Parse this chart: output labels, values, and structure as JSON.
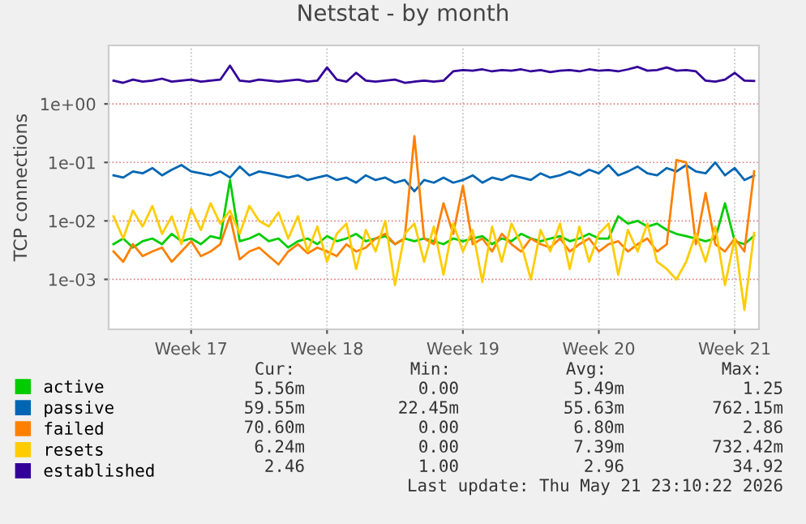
{
  "chart_data": {
    "type": "line",
    "title": "Netstat - by month",
    "ylabel": "TCP connections",
    "log": true,
    "grid": true,
    "legend": "bottom",
    "ylim": [
      0.00014,
      10
    ],
    "yticks": [
      {
        "value": 0.001,
        "label": "1e-03"
      },
      {
        "value": 0.01,
        "label": "1e-02"
      },
      {
        "value": 0.1,
        "label": "1e-01"
      },
      {
        "value": 1,
        "label": "1e+00"
      }
    ],
    "categories": [
      null,
      null,
      null,
      null,
      null,
      null,
      null,
      null,
      "Week 17",
      null,
      null,
      null,
      null,
      null,
      null,
      null,
      null,
      null,
      null,
      null,
      null,
      null,
      "Week 18",
      null,
      null,
      null,
      null,
      null,
      null,
      null,
      null,
      null,
      null,
      null,
      null,
      null,
      "Week 19",
      null,
      null,
      null,
      null,
      null,
      null,
      null,
      null,
      null,
      null,
      null,
      null,
      null,
      "Week 20",
      null,
      null,
      null,
      null,
      null,
      null,
      null,
      null,
      null,
      null,
      null,
      null,
      null,
      "Week 21",
      null,
      null
    ],
    "series": [
      {
        "name": "active",
        "color": "#00cc00",
        "values": [
          0.004,
          0.005,
          0.0035,
          0.0045,
          0.005,
          0.004,
          0.006,
          0.0045,
          0.005,
          0.004,
          0.0055,
          0.005,
          0.05,
          0.0045,
          0.005,
          0.006,
          0.0045,
          0.005,
          0.0035,
          0.0045,
          0.005,
          0.004,
          0.0055,
          0.0045,
          0.005,
          0.006,
          0.0045,
          0.005,
          0.0055,
          0.004,
          0.005,
          0.0045,
          0.005,
          0.0045,
          0.004,
          0.005,
          0.0045,
          0.005,
          0.0055,
          0.004,
          0.005,
          0.0045,
          0.006,
          0.005,
          0.0045,
          0.005,
          0.0055,
          0.0045,
          0.005,
          0.006,
          0.005,
          0.005,
          0.012,
          0.009,
          0.01,
          0.008,
          0.009,
          0.007,
          0.006,
          0.0055,
          0.005,
          0.0045,
          0.005,
          0.02,
          0.0045,
          0.004,
          0.00556
        ]
      },
      {
        "name": "passive",
        "color": "#0066b3",
        "values": [
          0.06,
          0.055,
          0.07,
          0.065,
          0.08,
          0.06,
          0.075,
          0.09,
          0.07,
          0.065,
          0.06,
          0.07,
          0.055,
          0.085,
          0.06,
          0.07,
          0.065,
          0.06,
          0.055,
          0.06,
          0.05,
          0.055,
          0.06,
          0.05,
          0.055,
          0.045,
          0.06,
          0.05,
          0.055,
          0.045,
          0.05,
          0.032,
          0.05,
          0.045,
          0.055,
          0.045,
          0.05,
          0.06,
          0.045,
          0.055,
          0.05,
          0.06,
          0.055,
          0.05,
          0.065,
          0.055,
          0.06,
          0.07,
          0.06,
          0.075,
          0.065,
          0.09,
          0.06,
          0.07,
          0.085,
          0.065,
          0.06,
          0.08,
          0.07,
          0.09,
          0.07,
          0.065,
          0.1,
          0.06,
          0.08,
          0.05,
          0.0596
        ]
      },
      {
        "name": "failed",
        "color": "#ff8000",
        "values": [
          0.003,
          0.002,
          0.004,
          0.0025,
          0.003,
          0.0035,
          0.002,
          0.003,
          0.0045,
          0.0025,
          0.003,
          0.004,
          0.012,
          0.0022,
          0.003,
          0.0035,
          0.0025,
          0.0018,
          0.003,
          0.004,
          0.0028,
          0.0035,
          0.003,
          0.0025,
          0.004,
          0.003,
          0.0035,
          0.005,
          0.006,
          0.004,
          0.005,
          0.28,
          0.005,
          0.004,
          0.02,
          0.006,
          0.04,
          0.004,
          0.005,
          0.003,
          0.006,
          0.004,
          0.003,
          0.005,
          0.004,
          0.0035,
          0.005,
          0.003,
          0.004,
          0.005,
          0.003,
          0.004,
          0.0045,
          0.003,
          0.004,
          0.005,
          0.003,
          0.004,
          0.11,
          0.1,
          0.004,
          0.03,
          0.004,
          0.003,
          0.005,
          0.003,
          0.0706
        ]
      },
      {
        "name": "resets",
        "color": "#ffcc00",
        "values": [
          0.012,
          0.005,
          0.015,
          0.008,
          0.018,
          0.006,
          0.012,
          0.004,
          0.016,
          0.007,
          0.02,
          0.009,
          0.015,
          0.006,
          0.018,
          0.01,
          0.008,
          0.014,
          0.005,
          0.012,
          0.003,
          0.008,
          0.002,
          0.006,
          0.009,
          0.0015,
          0.007,
          0.003,
          0.01,
          0.0008,
          0.006,
          0.009,
          0.002,
          0.008,
          0.0012,
          0.009,
          0.003,
          0.007,
          0.0009,
          0.008,
          0.002,
          0.009,
          0.004,
          0.001,
          0.007,
          0.003,
          0.009,
          0.0015,
          0.008,
          0.002,
          0.006,
          0.009,
          0.0012,
          0.007,
          0.003,
          0.009,
          0.002,
          0.0015,
          0.001,
          0.002,
          0.006,
          0.002,
          0.008,
          0.0008,
          0.005,
          0.0003,
          0.00624
        ]
      },
      {
        "name": "established",
        "color": "#330099",
        "values": [
          2.5,
          2.3,
          2.6,
          2.4,
          2.5,
          2.7,
          2.4,
          2.5,
          2.6,
          2.4,
          2.5,
          2.6,
          4.5,
          2.5,
          2.4,
          2.6,
          2.5,
          2.4,
          2.5,
          2.6,
          2.4,
          2.5,
          4.2,
          2.6,
          2.4,
          3.4,
          2.5,
          2.4,
          2.5,
          2.6,
          2.3,
          2.4,
          2.5,
          2.4,
          2.5,
          3.6,
          3.8,
          3.7,
          3.9,
          3.6,
          3.8,
          3.7,
          3.9,
          3.6,
          3.8,
          3.5,
          3.7,
          3.8,
          3.6,
          3.9,
          3.7,
          3.8,
          3.6,
          3.9,
          4.3,
          3.7,
          3.8,
          4.2,
          3.7,
          3.8,
          3.6,
          2.5,
          2.4,
          2.6,
          3.4,
          2.5,
          2.46
        ]
      }
    ],
    "annotations": [
      "Cur:",
      "Min:",
      "Avg:",
      "Max:",
      "5.56m",
      "0.00",
      "5.49m",
      "1.25",
      "59.55m",
      "22.45m",
      "55.63m",
      "762.15m",
      "70.60m",
      "0.00",
      "6.80m",
      "2.86",
      "6.24m",
      "0.00",
      "7.39m",
      "732.42m",
      "2.46",
      "1.00",
      "2.96",
      "34.92",
      "Last update: Thu May 21 23:10:22 2026"
    ]
  }
}
